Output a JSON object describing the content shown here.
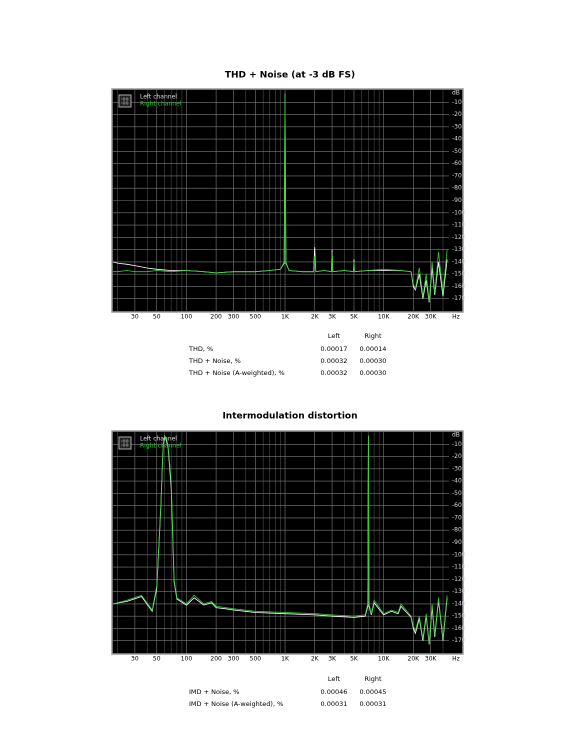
{
  "chart_data": [
    {
      "type": "line",
      "title": "THD + Noise (at -3 dB FS)",
      "xscale": "log",
      "xlabel": "Hz",
      "ylabel": "dB",
      "xlim": [
        18,
        46000
      ],
      "ylim": [
        -180,
        0
      ],
      "xticks": [
        30,
        50,
        100,
        200,
        300,
        500,
        {
          "value": 1000,
          "label": "1K"
        },
        {
          "value": 2000,
          "label": "2K"
        },
        {
          "value": 3000,
          "label": "3K"
        },
        {
          "value": 5000,
          "label": "5K"
        },
        {
          "value": 10000,
          "label": "10K"
        },
        {
          "value": 20000,
          "label": "20K"
        },
        {
          "value": 30000,
          "label": "30K"
        }
      ],
      "xminor": [
        20,
        40,
        60,
        70,
        80,
        90,
        400,
        600,
        700,
        800,
        900,
        4000,
        6000,
        7000,
        8000,
        9000,
        40000
      ],
      "yticks": [
        -10,
        -20,
        -30,
        -40,
        -50,
        -60,
        -70,
        -80,
        -90,
        -100,
        -110,
        -120,
        -130,
        -140,
        -150,
        -160,
        -170
      ],
      "grid": true,
      "x": [
        18,
        20,
        25,
        30,
        40,
        50,
        70,
        100,
        150,
        200,
        300,
        500,
        700,
        900,
        980,
        1000,
        1020,
        1100,
        1500,
        1950,
        2000,
        2050,
        2500,
        2950,
        3000,
        3050,
        4000,
        4950,
        5000,
        5050,
        7000,
        10000,
        15000,
        19000,
        20000,
        21000,
        23000,
        25000,
        27000,
        29000,
        31000,
        33000,
        36000,
        40000,
        44000
      ],
      "series": [
        {
          "name": "Left channel",
          "color": "#ffffff",
          "values": [
            -140,
            -141,
            -142,
            -143,
            -145,
            -146,
            -147,
            -147,
            -148,
            -149,
            -148,
            -148,
            -147,
            -146,
            -141,
            -3,
            -141,
            -147,
            -148,
            -148,
            -128,
            -148,
            -147,
            -148,
            -130,
            -148,
            -147,
            -148,
            -138,
            -148,
            -147,
            -147,
            -147,
            -148,
            -160,
            -163,
            -150,
            -170,
            -155,
            -173,
            -145,
            -167,
            -140,
            -168,
            -138
          ]
        },
        {
          "name": "Right channel",
          "color": "#33cc33",
          "values": [
            -148,
            -148,
            -147,
            -148,
            -148,
            -147,
            -148,
            -147,
            -148,
            -149,
            -148,
            -148,
            -147,
            -146,
            -140,
            -3,
            -140,
            -147,
            -148,
            -148,
            -135,
            -148,
            -147,
            -148,
            -132,
            -148,
            -147,
            -148,
            -140,
            -148,
            -147,
            -146,
            -147,
            -148,
            -158,
            -162,
            -145,
            -168,
            -150,
            -172,
            -140,
            -165,
            -132,
            -165,
            -130
          ]
        }
      ]
    },
    {
      "type": "line",
      "title": "Intermodulation distortion",
      "xscale": "log",
      "xlabel": "Hz",
      "ylabel": "dB",
      "xlim": [
        18,
        46000
      ],
      "ylim": [
        -180,
        0
      ],
      "xticks": [
        30,
        50,
        100,
        200,
        300,
        500,
        {
          "value": 1000,
          "label": "1K"
        },
        {
          "value": 2000,
          "label": "2K"
        },
        {
          "value": 3000,
          "label": "3K"
        },
        {
          "value": 5000,
          "label": "5K"
        },
        {
          "value": 10000,
          "label": "10K"
        },
        {
          "value": 20000,
          "label": "20K"
        },
        {
          "value": 30000,
          "label": "30K"
        }
      ],
      "xminor": [
        20,
        40,
        60,
        70,
        80,
        90,
        400,
        600,
        700,
        800,
        900,
        4000,
        6000,
        7000,
        8000,
        9000,
        40000
      ],
      "yticks": [
        -10,
        -20,
        -30,
        -40,
        -50,
        -60,
        -70,
        -80,
        -90,
        -100,
        -110,
        -120,
        -130,
        -140,
        -150,
        -160,
        -170
      ],
      "grid": true,
      "x": [
        18,
        25,
        35,
        45,
        50,
        55,
        58,
        60,
        62,
        65,
        70,
        75,
        80,
        100,
        120,
        150,
        180,
        200,
        250,
        300,
        500,
        1000,
        2000,
        3000,
        5000,
        6500,
        6900,
        7000,
        7100,
        7500,
        8000,
        10000,
        12000,
        14000,
        15000,
        19000,
        20000,
        21000,
        23000,
        25000,
        27000,
        29000,
        31000,
        33000,
        36000,
        40000,
        44000
      ],
      "series": [
        {
          "name": "Left channel",
          "color": "#ffffff",
          "values": [
            -140,
            -138,
            -134,
            -146,
            -127,
            -62,
            -12,
            -3,
            -6,
            -12,
            -45,
            -122,
            -136,
            -141,
            -135,
            -141,
            -139,
            -143,
            -144,
            -145,
            -147,
            -148,
            -149,
            -150,
            -151,
            -150,
            -142,
            -3,
            -142,
            -149,
            -139,
            -149,
            -146,
            -148,
            -142,
            -151,
            -160,
            -164,
            -152,
            -170,
            -150,
            -173,
            -143,
            -167,
            -137,
            -170,
            -135
          ]
        },
        {
          "name": "Right channel",
          "color": "#33cc33",
          "values": [
            -140,
            -137,
            -133,
            -145,
            -125,
            -60,
            -10,
            -3,
            -5,
            -10,
            -40,
            -120,
            -135,
            -140,
            -133,
            -140,
            -138,
            -142,
            -143,
            -144,
            -146,
            -147,
            -148,
            -149,
            -150,
            -149,
            -140,
            -3,
            -140,
            -148,
            -137,
            -148,
            -145,
            -147,
            -140,
            -150,
            -158,
            -162,
            -150,
            -168,
            -148,
            -172,
            -140,
            -165,
            -135,
            -168,
            -133
          ]
        }
      ]
    }
  ],
  "tables": [
    {
      "columns": [
        "Left",
        "Right"
      ],
      "rows": [
        {
          "label": "THD, %",
          "values": [
            "0.00017",
            "0.00014"
          ]
        },
        {
          "label": "THD + Noise, %",
          "values": [
            "0.00032",
            "0.00030"
          ]
        },
        {
          "label": "THD + Noise (A-weighted), %",
          "values": [
            "0.00032",
            "0.00030"
          ]
        }
      ]
    },
    {
      "columns": [
        "Left",
        "Right"
      ],
      "rows": [
        {
          "label": "IMD + Noise, %",
          "values": [
            "0.00046",
            "0.00045"
          ]
        },
        {
          "label": "IMD + Noise (A-weighted), %",
          "values": [
            "0.00031",
            "0.00031"
          ]
        }
      ]
    }
  ]
}
